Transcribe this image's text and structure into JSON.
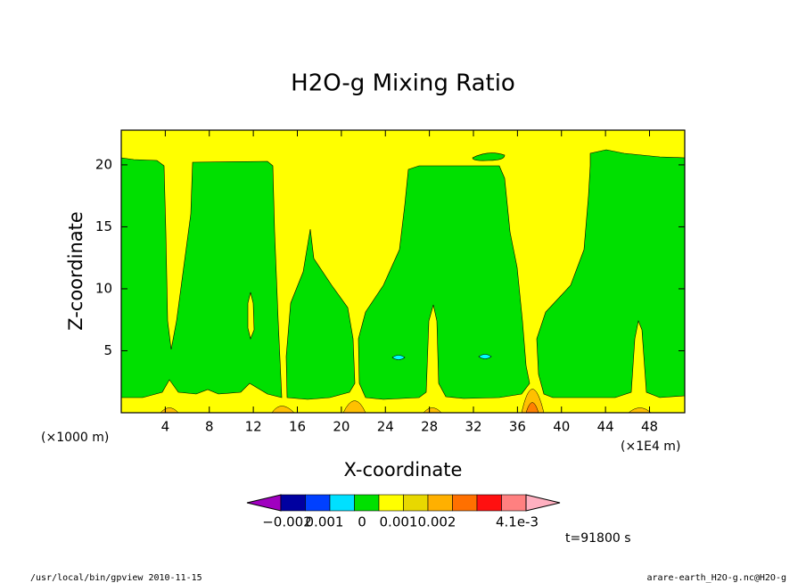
{
  "chart_data": {
    "type": "contour",
    "title": "H2O-g Mixing Ratio",
    "x_label": "X-coordinate",
    "y_label": "Z-coordinate",
    "y_unit": "(×1000 m)",
    "x_unit": "(×1E4 m)",
    "time_label": "t=91800 s",
    "footer_left": "/usr/local/bin/gpview  2010-11-15",
    "footer_right": "arare-earth_H2O-g.nc@H2O-g",
    "xlim": [
      0,
      51.2
    ],
    "ylim": [
      0,
      22.8
    ],
    "xticks": [
      4,
      8,
      12,
      16,
      20,
      24,
      28,
      32,
      36,
      40,
      44,
      48
    ],
    "yticks": [
      5,
      10,
      15,
      20
    ],
    "colorbar_colors": [
      "#a000c0",
      "#0000a0",
      "#0040ff",
      "#00e0ff",
      "#00e000",
      "#ffff00",
      "#e8d800",
      "#ffb000",
      "#ff7000",
      "#ff1010",
      "#ff8080",
      "#ffb0c0"
    ],
    "colorbar_labels": [
      "−0.002",
      "0.001",
      "0",
      "0.001",
      "0.002",
      "4.1e-3"
    ]
  }
}
